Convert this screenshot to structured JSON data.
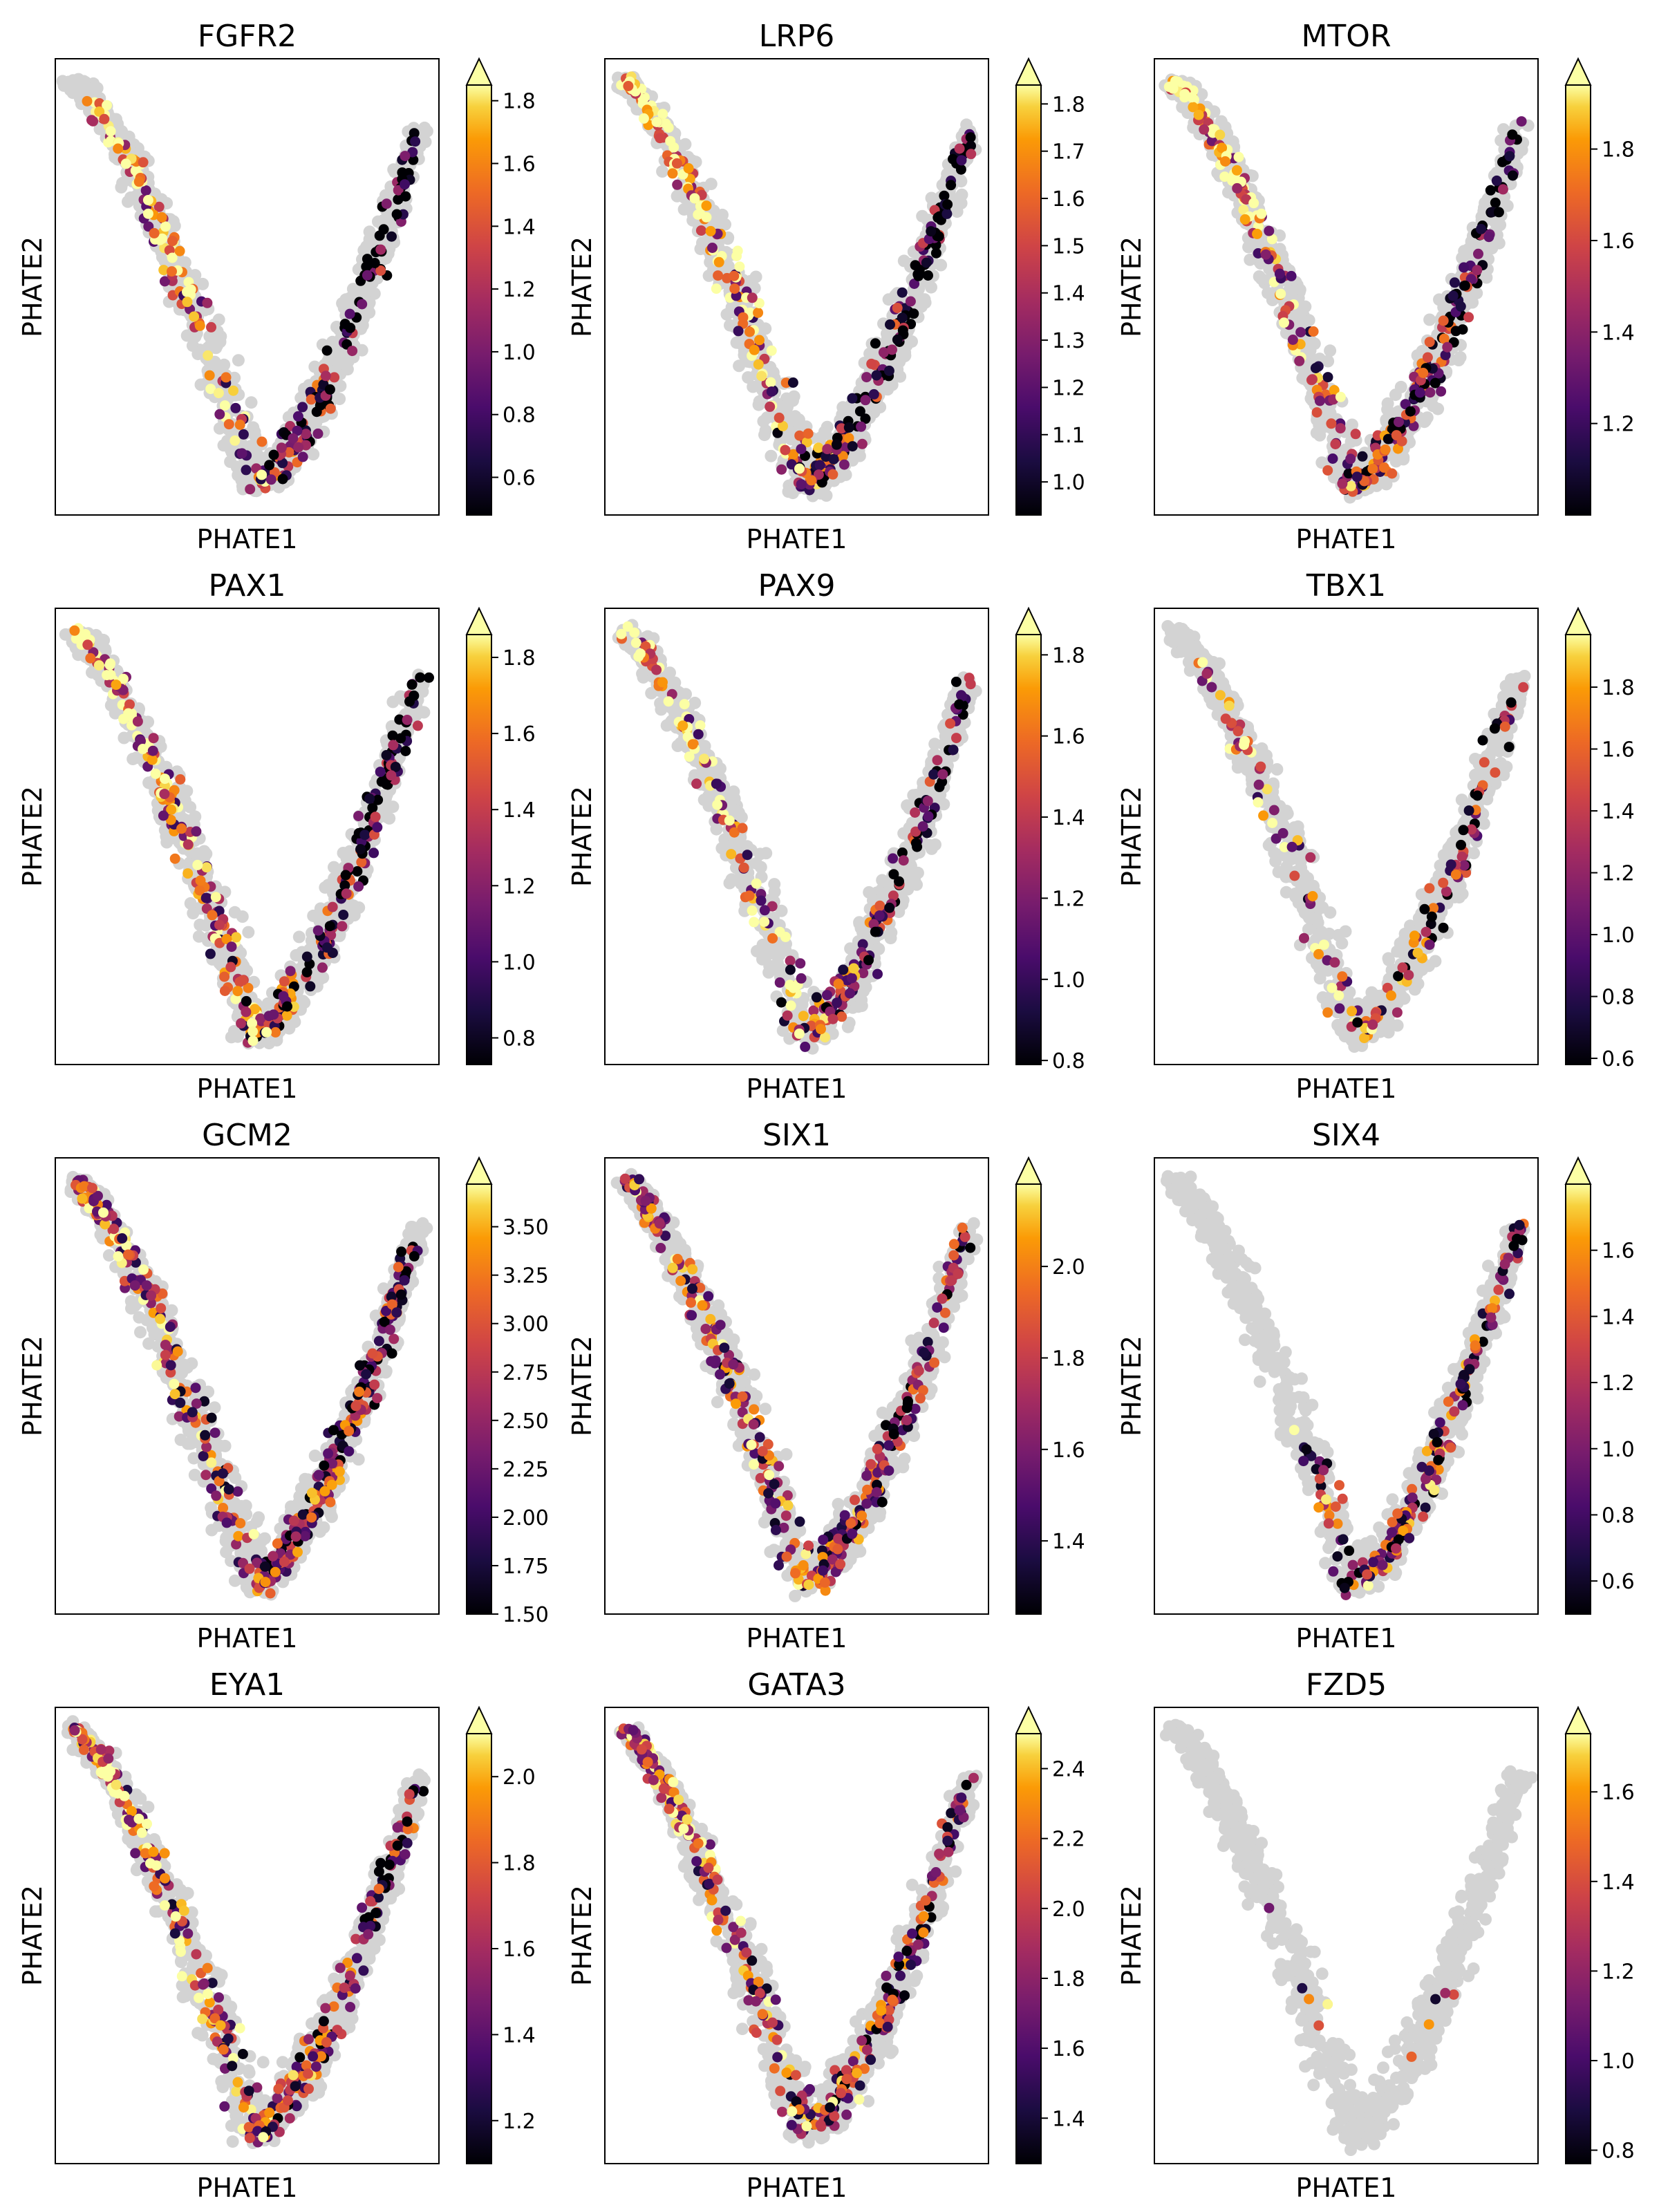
{
  "figure": {
    "xlabel": "PHATE1",
    "ylabel": "PHATE2",
    "background_color": "#d3d3d3",
    "colormap": "inferno"
  },
  "chart_data": [
    {
      "type": "scatter",
      "title": "FGFR2",
      "xlabel": "PHATE1",
      "ylabel": "PHATE2",
      "vmin": 0.48,
      "vmax": 1.85,
      "ticks": [
        "0.6",
        "0.8",
        "1.0",
        "1.2",
        "1.4",
        "1.6",
        "1.8"
      ],
      "colorbar_extend": "max",
      "grid": false
    },
    {
      "type": "scatter",
      "title": "LRP6",
      "xlabel": "PHATE1",
      "ylabel": "PHATE2",
      "vmin": 0.93,
      "vmax": 1.84,
      "ticks": [
        "1.0",
        "1.1",
        "1.2",
        "1.3",
        "1.4",
        "1.5",
        "1.6",
        "1.7",
        "1.8"
      ],
      "colorbar_extend": "max",
      "grid": false
    },
    {
      "type": "scatter",
      "title": "MTOR",
      "xlabel": "PHATE1",
      "ylabel": "PHATE2",
      "vmin": 1.0,
      "vmax": 1.94,
      "ticks": [
        "1.2",
        "1.4",
        "1.6",
        "1.8"
      ],
      "colorbar_extend": "max",
      "grid": false
    },
    {
      "type": "scatter",
      "title": "PAX1",
      "xlabel": "PHATE1",
      "ylabel": "PHATE2",
      "vmin": 0.73,
      "vmax": 1.86,
      "ticks": [
        "0.8",
        "1.0",
        "1.2",
        "1.4",
        "1.6",
        "1.8"
      ],
      "colorbar_extend": "max",
      "grid": false
    },
    {
      "type": "scatter",
      "title": "PAX9",
      "xlabel": "PHATE1",
      "ylabel": "PHATE2",
      "vmin": 0.79,
      "vmax": 1.85,
      "ticks": [
        "0.8",
        "1.0",
        "1.2",
        "1.4",
        "1.6",
        "1.8"
      ],
      "colorbar_extend": "max",
      "grid": false
    },
    {
      "type": "scatter",
      "title": "TBX1",
      "xlabel": "PHATE1",
      "ylabel": "PHATE2",
      "vmin": 0.58,
      "vmax": 1.97,
      "ticks": [
        "0.6",
        "0.8",
        "1.0",
        "1.2",
        "1.4",
        "1.6",
        "1.8"
      ],
      "colorbar_extend": "max",
      "grid": false
    },
    {
      "type": "scatter",
      "title": "GCM2",
      "xlabel": "PHATE1",
      "ylabel": "PHATE2",
      "vmin": 1.5,
      "vmax": 3.72,
      "ticks": [
        "1.50",
        "1.75",
        "2.00",
        "2.25",
        "2.50",
        "2.75",
        "3.00",
        "3.25",
        "3.50"
      ],
      "colorbar_extend": "max",
      "grid": false
    },
    {
      "type": "scatter",
      "title": "SIX1",
      "xlabel": "PHATE1",
      "ylabel": "PHATE2",
      "vmin": 1.24,
      "vmax": 2.18,
      "ticks": [
        "1.4",
        "1.6",
        "1.8",
        "2.0"
      ],
      "colorbar_extend": "max",
      "grid": false
    },
    {
      "type": "scatter",
      "title": "SIX4",
      "xlabel": "PHATE1",
      "ylabel": "PHATE2",
      "vmin": 0.5,
      "vmax": 1.8,
      "ticks": [
        "0.6",
        "0.8",
        "1.0",
        "1.2",
        "1.4",
        "1.6"
      ],
      "colorbar_extend": "max",
      "grid": false
    },
    {
      "type": "scatter",
      "title": "EYA1",
      "xlabel": "PHATE1",
      "ylabel": "PHATE2",
      "vmin": 1.1,
      "vmax": 2.1,
      "ticks": [
        "1.2",
        "1.4",
        "1.6",
        "1.8",
        "2.0"
      ],
      "colorbar_extend": "max",
      "grid": false
    },
    {
      "type": "scatter",
      "title": "GATA3",
      "xlabel": "PHATE1",
      "ylabel": "PHATE2",
      "vmin": 1.27,
      "vmax": 2.5,
      "ticks": [
        "1.4",
        "1.6",
        "1.8",
        "2.0",
        "2.2",
        "2.4"
      ],
      "colorbar_extend": "max",
      "grid": false
    },
    {
      "type": "scatter",
      "title": "FZD5",
      "xlabel": "PHATE1",
      "ylabel": "PHATE2",
      "vmin": 0.77,
      "vmax": 1.73,
      "ticks": [
        "0.8",
        "1.0",
        "1.2",
        "1.4",
        "1.6"
      ],
      "colorbar_extend": "max",
      "grid": false
    }
  ]
}
